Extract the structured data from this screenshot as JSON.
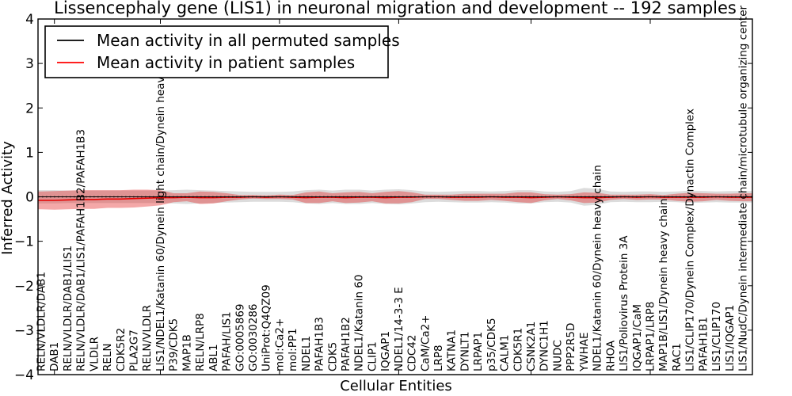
{
  "title": "Lissencephaly gene (LIS1) in neuronal migration and development -- 192 samples",
  "axes": {
    "xlabel": "Cellular Entities",
    "ylabel": "Inferred Activity",
    "ytick_labels": [
      "4",
      "3",
      "2",
      "1",
      "0",
      "−1",
      "−2",
      "−3",
      "−4"
    ],
    "ytick_values": [
      4,
      3,
      2,
      1,
      0,
      -1,
      -2,
      -3,
      -4
    ],
    "ylim": [
      -4,
      4
    ]
  },
  "legend": {
    "entries": [
      {
        "label": "Mean activity in all permuted samples",
        "color": "#000000"
      },
      {
        "label": "Mean activity in patient samples",
        "color": "#ff0000"
      }
    ]
  },
  "colors": {
    "permuted_line": "#000000",
    "patient_line": "#e60000",
    "permuted_band": "rgba(130,130,130,0.28)",
    "patient_band": "rgba(228,38,38,0.40)",
    "frame": "#000000"
  },
  "chart_data": {
    "type": "line",
    "title": "Lissencephaly gene (LIS1) in neuronal migration and development -- 192 samples",
    "xlabel": "Cellular Entities",
    "ylabel": "Inferred Activity",
    "ylim": [
      -4,
      4
    ],
    "grid": false,
    "legend_position": "upper left",
    "band_note": "each series drawn as mean line with mean±std shaded band, all values ≈ 0",
    "xtick_indices": [
      1,
      9,
      18,
      27,
      37,
      46
    ],
    "categories": [
      "RELN/VLDLR/DAB1",
      "DAB1",
      "RELN/VLDLR/DAB1/LIS1",
      "RELN/VLDLR/DAB1/LIS1/PAFAH1B2/PAFAH1B3",
      "VLDLR",
      "RELN",
      "CDK5R2",
      "PLA2G7",
      "RELN/VLDLR",
      "LIS1/NDEL1/Katanin 60/Dynein light chain/Dynein heavy chain",
      "P39/CDK5",
      "MAP1B",
      "RELN/LRP8",
      "ABL1",
      "PAFAH/LIS1",
      "GO:0005869",
      "GO:0030286",
      "UniProt:Q4QZ09",
      "mol:Ca2+",
      "mol:PP1",
      "NDEL1",
      "PAFAH1B3",
      "CDK5",
      "PAFAH1B2",
      "NDEL1/Katanin 60",
      "CLIP1",
      "IQGAP1",
      "NDEL1/14-3-3 E",
      "CDC42",
      "CaM/Ca2+",
      "LRP8",
      "KATNA1",
      "DYNLT1",
      "LRPAP1",
      "p35/CDK5",
      "CALM1",
      "CDK5R1",
      "CSNK2A1",
      "DYNC1H1",
      "NUDC",
      "PPP2R5D",
      "YWHAE",
      "NDEL1/Katanin 60/Dynein heavy chain",
      "RHOA",
      "LIS1/Poliovirus Protein 3A",
      "IQGAP1/CaM",
      "LRPAP1/LRP8",
      "MAP1B/LIS1/Dynein heavy chain",
      "RAC1",
      "LIS1/CLIP170/Dynein Complex/Dynactin Complex",
      "PAFAH1B1",
      "LIS1/CLIP170",
      "LIS1/IQGAP1",
      "LIS1/NudC/Dynein intermediate chain/microtubule organizing center"
    ],
    "series": [
      {
        "name": "Mean activity in all permuted samples",
        "color": "#000000",
        "values": [
          0,
          0,
          0,
          0,
          0,
          0,
          0,
          0,
          0,
          0,
          0,
          0,
          0,
          0,
          0,
          0,
          0,
          0,
          0,
          0,
          0,
          0,
          0,
          0,
          0,
          0,
          0,
          0,
          0,
          0,
          0,
          0,
          0,
          0,
          0,
          0,
          0,
          0,
          0,
          0,
          0,
          0,
          0,
          0,
          0,
          0,
          0,
          0,
          0,
          0,
          0,
          0,
          0,
          0
        ],
        "std": [
          0.15,
          0.15,
          0.14,
          0.14,
          0.14,
          0.14,
          0.14,
          0.14,
          0.14,
          0.14,
          0.15,
          0.16,
          0.15,
          0.14,
          0.13,
          0.12,
          0.11,
          0.11,
          0.11,
          0.12,
          0.15,
          0.16,
          0.14,
          0.16,
          0.16,
          0.14,
          0.16,
          0.17,
          0.15,
          0.12,
          0.11,
          0.12,
          0.13,
          0.13,
          0.12,
          0.13,
          0.15,
          0.15,
          0.12,
          0.11,
          0.13,
          0.2,
          0.18,
          0.12,
          0.11,
          0.12,
          0.12,
          0.11,
          0.12,
          0.14,
          0.13,
          0.12,
          0.13,
          0.13
        ]
      },
      {
        "name": "Mean activity in patient samples",
        "color": "#e60000",
        "values": [
          -0.08,
          -0.08,
          -0.07,
          -0.06,
          -0.06,
          -0.05,
          -0.05,
          -0.04,
          -0.03,
          -0.02,
          -0.02,
          -0.01,
          -0.02,
          -0.02,
          -0.01,
          -0.01,
          0,
          -0.01,
          0,
          -0.01,
          -0.02,
          -0.01,
          -0.01,
          -0.02,
          -0.01,
          -0.01,
          -0.02,
          -0.01,
          -0.01,
          0,
          0,
          -0.01,
          -0.01,
          -0.01,
          0,
          -0.01,
          -0.01,
          -0.02,
          -0.01,
          0,
          -0.01,
          -0.02,
          -0.02,
          -0.01,
          0,
          -0.01,
          0,
          -0.01,
          -0.01,
          -0.01,
          -0.01,
          0,
          -0.01,
          -0.01
        ],
        "std": [
          0.2,
          0.21,
          0.21,
          0.21,
          0.21,
          0.2,
          0.2,
          0.2,
          0.19,
          0.17,
          0.1,
          0.09,
          0.14,
          0.13,
          0.09,
          0.05,
          0.04,
          0.04,
          0.05,
          0.05,
          0.12,
          0.13,
          0.09,
          0.12,
          0.12,
          0.09,
          0.13,
          0.14,
          0.11,
          0.05,
          0.05,
          0.06,
          0.08,
          0.08,
          0.07,
          0.08,
          0.11,
          0.12,
          0.07,
          0.05,
          0.07,
          0.12,
          0.11,
          0.06,
          0.05,
          0.06,
          0.06,
          0.05,
          0.08,
          0.1,
          0.09,
          0.07,
          0.08,
          0.09
        ]
      }
    ]
  }
}
